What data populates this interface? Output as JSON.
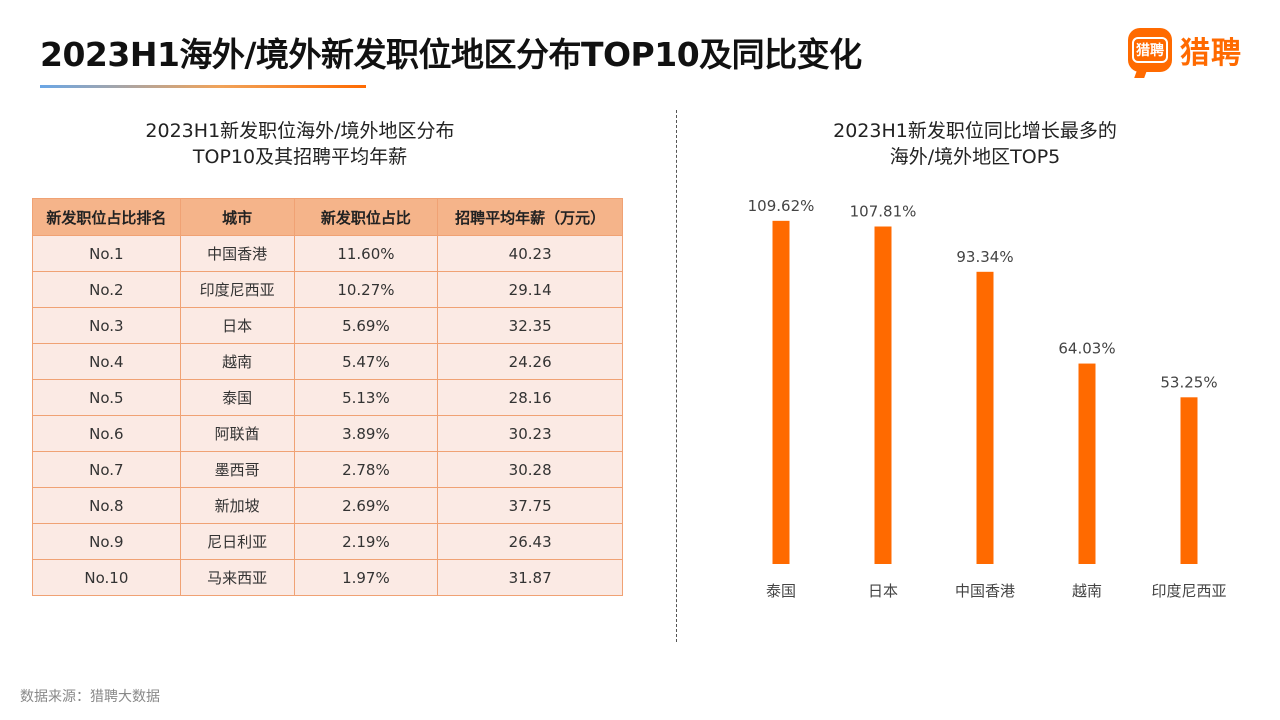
{
  "header": {
    "title": "2023H1海外/境外新发职位地区分布TOP10及同比变化",
    "logo_badge": "猎聘",
    "logo_text": "猎聘"
  },
  "left": {
    "heading_line1": "2023H1新发职位海外/境外地区分布",
    "heading_line2": "TOP10及其招聘平均年薪",
    "columns": [
      "新发职位占比排名",
      "城市",
      "新发职位占比",
      "招聘平均年薪（万元）"
    ],
    "rows": [
      [
        "No.1",
        "中国香港",
        "11.60%",
        "40.23"
      ],
      [
        "No.2",
        "印度尼西亚",
        "10.27%",
        "29.14"
      ],
      [
        "No.3",
        "日本",
        "5.69%",
        "32.35"
      ],
      [
        "No.4",
        "越南",
        "5.47%",
        "24.26"
      ],
      [
        "No.5",
        "泰国",
        "5.13%",
        "28.16"
      ],
      [
        "No.6",
        "阿联酋",
        "3.89%",
        "30.23"
      ],
      [
        "No.7",
        "墨西哥",
        "2.78%",
        "30.28"
      ],
      [
        "No.8",
        "新加坡",
        "2.69%",
        "37.75"
      ],
      [
        "No.9",
        "尼日利亚",
        "2.19%",
        "26.43"
      ],
      [
        "No.10",
        "马来西亚",
        "1.97%",
        "31.87"
      ]
    ]
  },
  "right": {
    "heading_line1": "2023H1新发职位同比增长最多的",
    "heading_line2": "海外/境外地区TOP5"
  },
  "chart_data": {
    "type": "bar",
    "title": "2023H1新发职位同比增长最多的海外/境外地区TOP5",
    "categories": [
      "泰国",
      "日本",
      "中国香港",
      "越南",
      "印度尼西亚"
    ],
    "values": [
      109.62,
      107.81,
      93.34,
      64.03,
      53.25
    ],
    "value_labels": [
      "109.62%",
      "107.81%",
      "93.34%",
      "64.03%",
      "53.25%"
    ],
    "ylim": [
      0,
      115
    ],
    "xlabel": "",
    "ylabel": "",
    "grid": false,
    "bar_color": "#ff6a00"
  },
  "footer": {
    "source": "数据来源：猎聘大数据"
  }
}
